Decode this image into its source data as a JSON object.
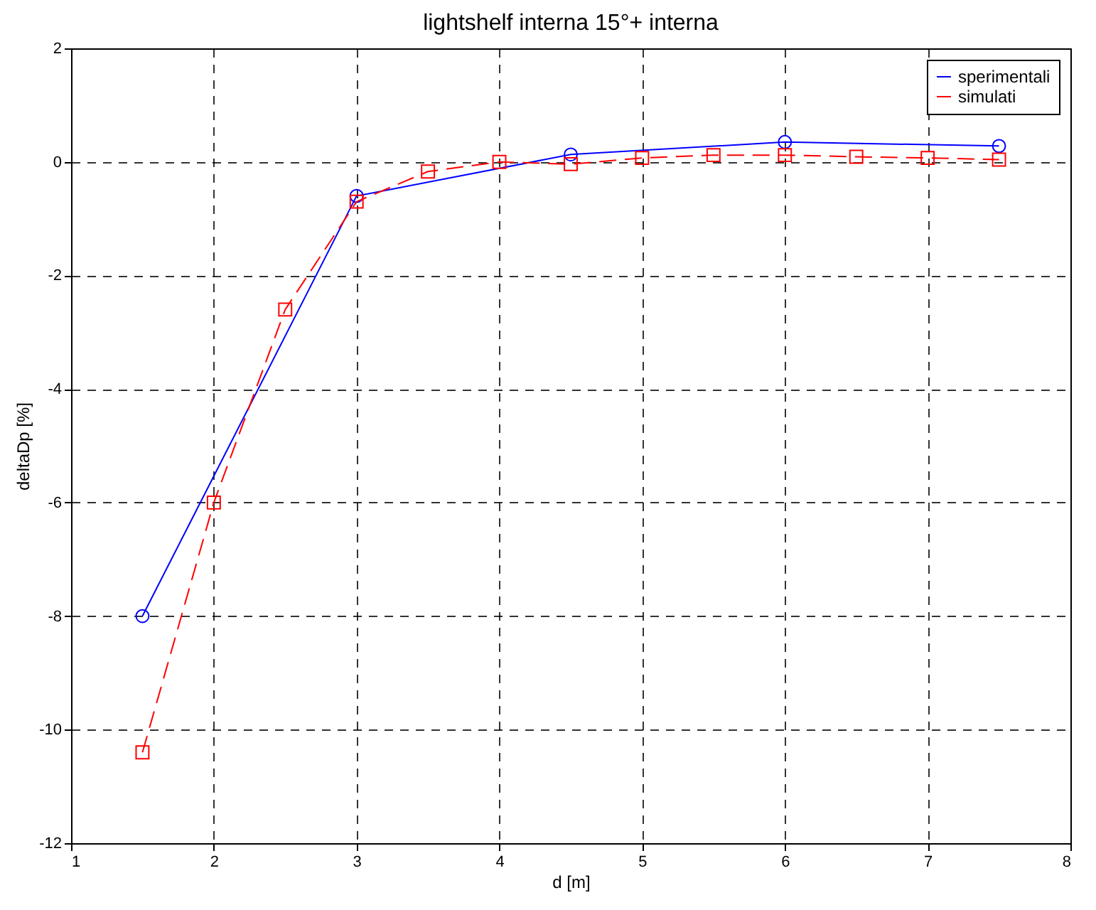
{
  "chart_data": {
    "type": "line",
    "title": "lightshelf interna 15°+ interna",
    "xlabel": "d [m]",
    "ylabel": "deltaDp [%]",
    "xlim": [
      1,
      8
    ],
    "xticks": [
      1,
      2,
      3,
      4,
      5,
      6,
      7,
      8
    ],
    "ylim": [
      -12,
      2
    ],
    "yticks": [
      -12,
      -10,
      -8,
      -6,
      -4,
      -2,
      0,
      2
    ],
    "grid": true,
    "legend": "top right",
    "series": [
      {
        "name": "sperimentali",
        "color": "#0000ff",
        "marker": "circle",
        "line_style": "solid",
        "x": [
          1.5,
          3,
          4.5,
          6,
          7.5
        ],
        "values": [
          -8,
          -0.6,
          0.13,
          0.35,
          0.28
        ]
      },
      {
        "name": "simulati",
        "color": "#ff0000",
        "marker": "square",
        "line_style": "dashed",
        "x": [
          1.5,
          2,
          2.5,
          3,
          3.5,
          4,
          4.5,
          5,
          5.5,
          6,
          6.5,
          7,
          7.5
        ],
        "values": [
          -10.4,
          -6,
          -2.6,
          -0.7,
          -0.17,
          0,
          -0.04,
          0.07,
          0.12,
          0.12,
          0.09,
          0.07,
          0.04
        ]
      }
    ]
  }
}
